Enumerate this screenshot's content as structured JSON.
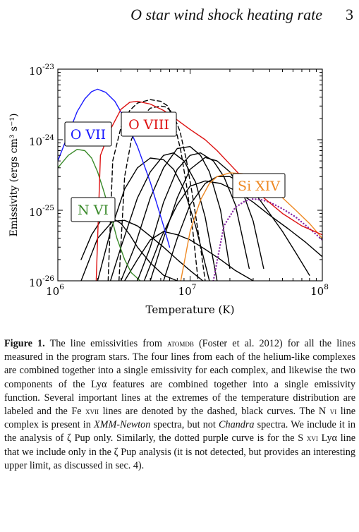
{
  "header": {
    "running_title": "O star wind shock heating rate",
    "page_number": "3"
  },
  "chart_data": {
    "type": "line",
    "xlabel": "Temperature (K)",
    "ylabel": "Emissivity (ergs cm³ s⁻¹)",
    "x_scale": "log",
    "y_scale": "log",
    "xlim": [
      1000000,
      100000000
    ],
    "ylim": [
      1e-26,
      1e-23
    ],
    "x_ticks": [
      "10^6",
      "10^7",
      "10^8"
    ],
    "y_ticks": [
      "10^-26",
      "10^-25",
      "10^-24",
      "10^-23"
    ],
    "labels": {
      "ovii": "O VII",
      "oviii": "O VIII",
      "nvi": "N VI",
      "sixiv": "Si XIV"
    },
    "colors": {
      "ovii": "#1a1aff",
      "oviii": "#dd1111",
      "nvi": "#3a8a2a",
      "sixiv": "#ee8822",
      "sxvi": "#8a2aa6",
      "other": "#000000"
    },
    "series": [
      {
        "key": "ovii",
        "style": "solid",
        "x": [
          1000000.0,
          1200000.0,
          1400000.0,
          1600000.0,
          1800000.0,
          2000000.0,
          2300000.0,
          2700000.0,
          3200000.0,
          4000000.0,
          5000000.0,
          6300000.0,
          7000000.0
        ],
        "y": [
          5e-25,
          1.2e-24,
          2.5e-24,
          3.8e-24,
          4.8e-24,
          5.2e-24,
          4.7e-24,
          3.5e-24,
          2e-24,
          8e-25,
          2.5e-25,
          6e-26,
          3e-26
        ]
      },
      {
        "key": "oviii",
        "style": "solid",
        "x": [
          1950000.0,
          2100000.0,
          2500000.0,
          3000000.0,
          3500000.0,
          4000000.0,
          5000000.0,
          6300000.0,
          8000000.0,
          10000000.0,
          13000000.0,
          16000000.0,
          20000000.0,
          30000000.0,
          50000000.0,
          70000000.0,
          100000000.0
        ],
        "y": [
          1e-26,
          6e-25,
          1.4e-24,
          2.7e-24,
          3.4e-24,
          3.5e-24,
          3.2e-24,
          2.6e-24,
          1.9e-24,
          1.4e-24,
          1e-24,
          7e-25,
          4.5e-25,
          2e-25,
          9e-26,
          6e-26,
          4.5e-26
        ]
      },
      {
        "key": "nvi",
        "style": "solid",
        "x": [
          1000000.0,
          1200000.0,
          1400000.0,
          1600000.0,
          1800000.0,
          2000000.0,
          2200000.0,
          2500000.0,
          2800000.0,
          3200000.0,
          3600000.0,
          4200000.0
        ],
        "y": [
          4e-25,
          6e-25,
          7.3e-25,
          7e-25,
          5.5e-25,
          3.5e-25,
          2e-25,
          9e-26,
          4e-26,
          2e-26,
          1.3e-26,
          1e-26
        ]
      },
      {
        "key": "sixiv",
        "style": "solid",
        "x": [
          8500000.0,
          10000000.0,
          12000000.0,
          14000000.0,
          16000000.0,
          20000000.0,
          25000000.0,
          32000000.0,
          40000000.0,
          50000000.0,
          63000000.0,
          80000000.0,
          100000000.0
        ],
        "y": [
          1e-26,
          5e-26,
          1.4e-25,
          2.4e-25,
          3e-25,
          3.4e-25,
          3.3e-25,
          2.8e-25,
          2.1e-25,
          1.5e-25,
          1e-25,
          6.5e-26,
          4e-26
        ]
      },
      {
        "key": "sxvi",
        "style": "dotted",
        "x": [
          15000000.0,
          18000000.0,
          22000000.0,
          26000000.0,
          30000000.0,
          35000000.0,
          40000000.0,
          50000000.0,
          63000000.0,
          80000000.0,
          100000000.0
        ],
        "y": [
          1e-26,
          6e-26,
          1.1e-25,
          1.35e-25,
          1.45e-25,
          1.4e-25,
          1.3e-25,
          1.05e-25,
          8e-26,
          5.5e-26,
          3.8e-26
        ]
      },
      {
        "key": "other",
        "style": "dashed",
        "x": [
          2400000.0,
          2600000.0,
          3000000.0,
          3500000.0,
          4000000.0,
          5000000.0,
          6000000.0,
          6800000.0,
          7500000.0,
          8500000.0,
          9500000.0,
          10500000.0,
          11500000.0
        ],
        "y": [
          1e-26,
          5e-25,
          1.5e-24,
          2.6e-24,
          3.3e-24,
          3.7e-24,
          3.5e-24,
          3e-24,
          1.9e-24,
          7e-25,
          2e-25,
          5e-26,
          1e-26
        ]
      },
      {
        "key": "other",
        "style": "dashed",
        "x": [
          2900000.0,
          3200000.0,
          3600000.0,
          4200000.0,
          5000000.0,
          6000000.0,
          6600000.0,
          7400000.0,
          8400000.0,
          9400000.0,
          10500000.0,
          12000000.0,
          13000000.0
        ],
        "y": [
          1e-26,
          3e-25,
          1e-24,
          2e-24,
          2.8e-24,
          3e-24,
          2.9e-24,
          2.4e-24,
          1.3e-24,
          5e-25,
          1.5e-25,
          3e-26,
          1e-26
        ]
      },
      {
        "key": "other",
        "style": "solid",
        "x": [
          1500000.0,
          1800000.0,
          2100000.0,
          2500000.0,
          3000000.0,
          3500000.0,
          4000000.0,
          5000000.0,
          6300000.0,
          8000000.0
        ],
        "y": [
          2e-26,
          4.5e-26,
          7e-26,
          8e-26,
          6.5e-26,
          4.5e-26,
          3e-26,
          1.8e-26,
          1.2e-26,
          1e-26
        ]
      },
      {
        "key": "other",
        "style": "solid",
        "x": [
          1500000.0,
          2000000.0,
          2600000.0,
          3200000.0,
          4000000.0,
          5000000.0,
          6300000.0,
          8000000.0,
          10000000.0,
          12500000.0
        ],
        "y": [
          1e-26,
          4e-26,
          7e-26,
          7.2e-26,
          6e-26,
          4.3e-26,
          3e-26,
          2e-26,
          1.4e-26,
          1e-26
        ]
      },
      {
        "key": "other",
        "style": "solid",
        "x": [
          2000000.0,
          2500000.0,
          3200000.0,
          4000000.0,
          5000000.0,
          6300000.0,
          7500000.0,
          9000000.0,
          11000000.0,
          14000000.0
        ],
        "y": [
          1e-26,
          5e-26,
          2e-25,
          4e-25,
          5.5e-25,
          5.2e-25,
          3.8e-25,
          2e-25,
          6e-26,
          1e-26
        ]
      },
      {
        "key": "other",
        "style": "solid",
        "x": [
          2500000.0,
          3000000.0,
          4000000.0,
          5000000.0,
          6300000.0,
          7500000.0,
          9000000.0,
          11000000.0,
          13000000.0,
          16000000.0
        ],
        "y": [
          1e-26,
          3e-26,
          1.5e-25,
          3.5e-25,
          6e-25,
          6.5e-25,
          5e-25,
          2.5e-25,
          8e-26,
          1e-26
        ]
      },
      {
        "key": "other",
        "style": "solid",
        "x": [
          3000000.0,
          3800000.0,
          5000000.0,
          6300000.0,
          8000000.0,
          10000000.0,
          12000000.0,
          14000000.0,
          17000000.0,
          20000000.0
        ],
        "y": [
          1e-26,
          3e-26,
          1.5e-25,
          4e-25,
          7.5e-25,
          8e-25,
          6e-25,
          3.5e-25,
          1e-25,
          1.5e-26
        ]
      },
      {
        "key": "other",
        "style": "solid",
        "x": [
          4000000.0,
          5000000.0,
          6300000.0,
          8000000.0,
          10000000.0,
          12000000.0,
          15000000.0,
          18000000.0,
          22000000.0,
          28000000.0
        ],
        "y": [
          1e-26,
          3e-26,
          1.3e-25,
          3.8e-25,
          6e-25,
          6.5e-25,
          5e-25,
          3e-25,
          1.2e-25,
          1.5e-26
        ]
      },
      {
        "key": "other",
        "style": "solid",
        "x": [
          5000000.0,
          6300000.0,
          8000000.0,
          10000000.0,
          13000000.0,
          16000000.0,
          20000000.0,
          25000000.0,
          30000000.0,
          36000000.0
        ],
        "y": [
          1e-26,
          4e-26,
          1.5e-25,
          3.8e-25,
          5.6e-25,
          5e-25,
          3.5e-25,
          1.8e-25,
          7e-26,
          1.5e-26
        ]
      },
      {
        "key": "other",
        "style": "solid",
        "x": [
          6300000.0,
          8000000.0,
          10000000.0,
          13000000.0,
          16000000.0,
          20000000.0,
          25000000.0,
          32000000.0,
          40000000.0,
          50000000.0,
          63000000.0,
          80000000.0
        ],
        "y": [
          1e-26,
          4e-26,
          1.2e-25,
          2.4e-25,
          3e-25,
          3e-25,
          2.4e-25,
          1.6e-25,
          9e-26,
          5e-26,
          2.5e-26,
          1.2e-26
        ]
      },
      {
        "key": "other",
        "style": "solid",
        "x": [
          3200000.0,
          4000000.0,
          5000000.0,
          6300000.0,
          8000000.0,
          10000000.0,
          13000000.0,
          17000000.0,
          22000000.0,
          30000000.0
        ],
        "y": [
          1e-26,
          2e-26,
          3.8e-26,
          5e-26,
          4.5e-26,
          3.8e-26,
          2.8e-26,
          2e-26,
          1.4e-26,
          1e-26
        ]
      },
      {
        "key": "other",
        "style": "solid",
        "x": [
          4500000.0,
          6000000.0,
          8000000.0,
          10000000.0,
          13000000.0,
          17000000.0,
          22000000.0,
          30000000.0,
          40000000.0,
          55000000.0,
          75000000.0,
          100000000.0
        ],
        "y": [
          1e-26,
          4e-26,
          1.2e-25,
          2.2e-25,
          2.6e-25,
          2.4e-25,
          1.9e-25,
          1.3e-25,
          8.5e-26,
          5.5e-26,
          3.5e-26,
          2.2e-26
        ]
      }
    ]
  },
  "caption": {
    "label": "Figure 1.",
    "parts": [
      " The line emissivities from ",
      "atomdb",
      " (Foster et al. 2012) for all the lines measured in the program stars. The four lines from each of the helium-like complexes are combined together into a single emissivity for each complex, and likewise the two components of the Lyα features are combined together into a single emissivity function. Several important lines at the extremes of the temperature distribution are labeled and the Fe ",
      "xvii",
      " lines are denoted by the dashed, black curves. The N ",
      "vi",
      " line complex is present in ",
      "XMM-Newton",
      " spectra, but not ",
      "Chandra",
      " spectra. We include it in the analysis of ζ Pup only. Similarly, the dotted purple curve is for the S ",
      "xvi",
      " Lyα line that we include only in the ζ Pup analysis (it is not detected, but provides an interesting upper limit, as discussed in sec. 4)."
    ]
  }
}
